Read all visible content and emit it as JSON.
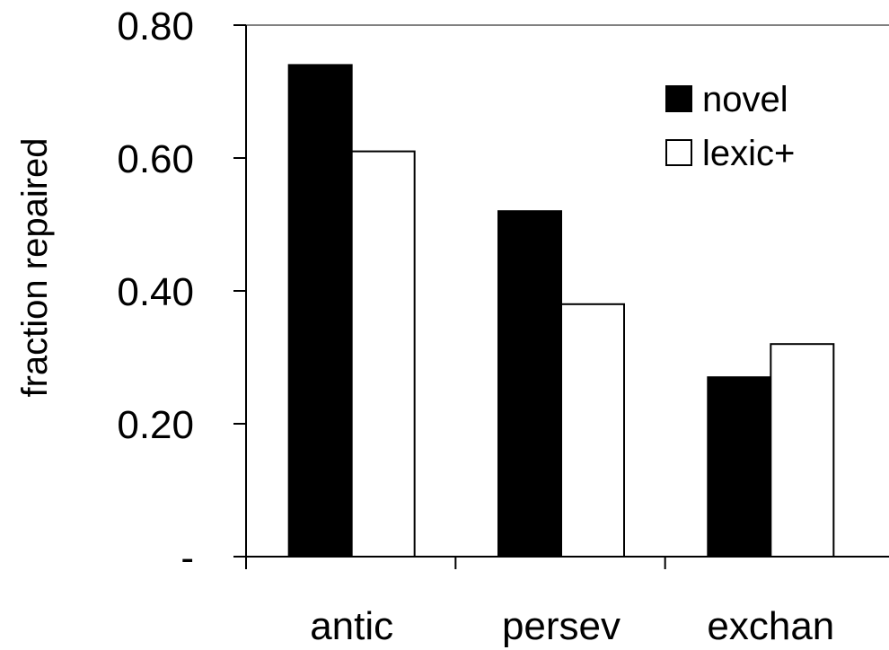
{
  "chart_data": {
    "type": "bar",
    "categories": [
      "antic",
      "persev",
      "exchan"
    ],
    "series": [
      {
        "name": "novel",
        "color": "#000000",
        "values": [
          0.74,
          0.52,
          0.27
        ]
      },
      {
        "name": "lexic+",
        "color": "#ffffff",
        "values": [
          0.61,
          0.38,
          0.32
        ]
      }
    ],
    "title": "",
    "xlabel": "",
    "ylabel": "fraction repaired",
    "ylim": [
      0,
      0.8
    ],
    "yticks": [
      0,
      0.2,
      0.4,
      0.6,
      0.8
    ],
    "ytick_labels": [
      "-",
      "0.20",
      "0.40",
      "0.60",
      "0.80"
    ],
    "grid": false,
    "legend_position": "top-right"
  }
}
